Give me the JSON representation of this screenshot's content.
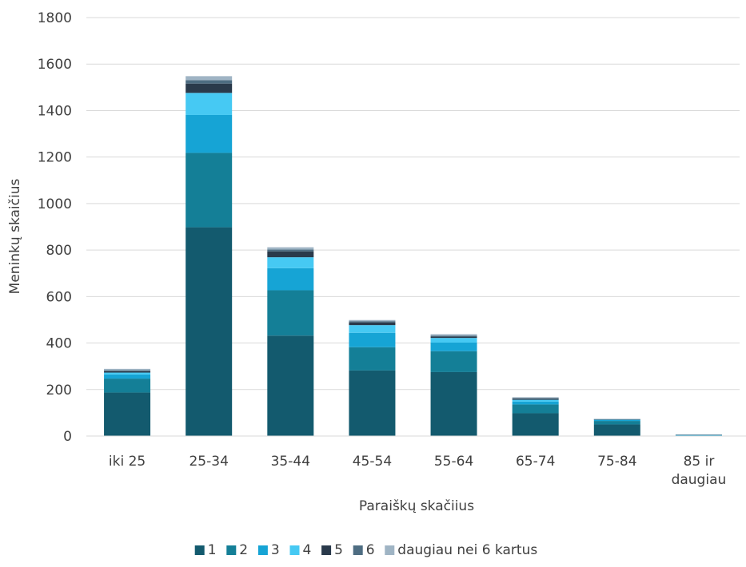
{
  "chart_data": {
    "type": "bar",
    "stacked": true,
    "title": "",
    "xlabel": "Paraiškų skačiius",
    "ylabel": "Meninkų skaičius",
    "ylim": [
      0,
      1800
    ],
    "yticks": [
      0,
      200,
      400,
      600,
      800,
      1000,
      1200,
      1400,
      1600,
      1800
    ],
    "grid": true,
    "legend_position": "bottom",
    "categories": [
      [
        "iki 25"
      ],
      [
        "25-34"
      ],
      [
        "35-44"
      ],
      [
        "45-54"
      ],
      [
        "55-64"
      ],
      [
        "65-74"
      ],
      [
        "75-84"
      ],
      [
        "85 ir",
        "daugiau"
      ]
    ],
    "series": [
      {
        "name": "1",
        "color": "#135a6e",
        "values": [
          187,
          898,
          432,
          282,
          275,
          98,
          50,
          2
        ]
      },
      {
        "name": "2",
        "color": "#147f97",
        "values": [
          60,
          320,
          195,
          100,
          90,
          38,
          15,
          1
        ]
      },
      {
        "name": "3",
        "color": "#16a4d5",
        "values": [
          18,
          163,
          95,
          62,
          37,
          12,
          4,
          1
        ]
      },
      {
        "name": "4",
        "color": "#46c9f3",
        "values": [
          8,
          95,
          47,
          33,
          20,
          8,
          2,
          1
        ]
      },
      {
        "name": "5",
        "color": "#2a3a4b",
        "values": [
          6,
          40,
          25,
          12,
          6,
          4,
          1,
          1
        ]
      },
      {
        "name": "6",
        "color": "#4e6d82",
        "values": [
          4,
          15,
          8,
          5,
          4,
          3,
          1,
          0
        ]
      },
      {
        "name": "daugiau nei 6 kartus",
        "color": "#9fb4c4",
        "values": [
          6,
          17,
          10,
          5,
          6,
          4,
          1,
          1
        ]
      }
    ]
  }
}
